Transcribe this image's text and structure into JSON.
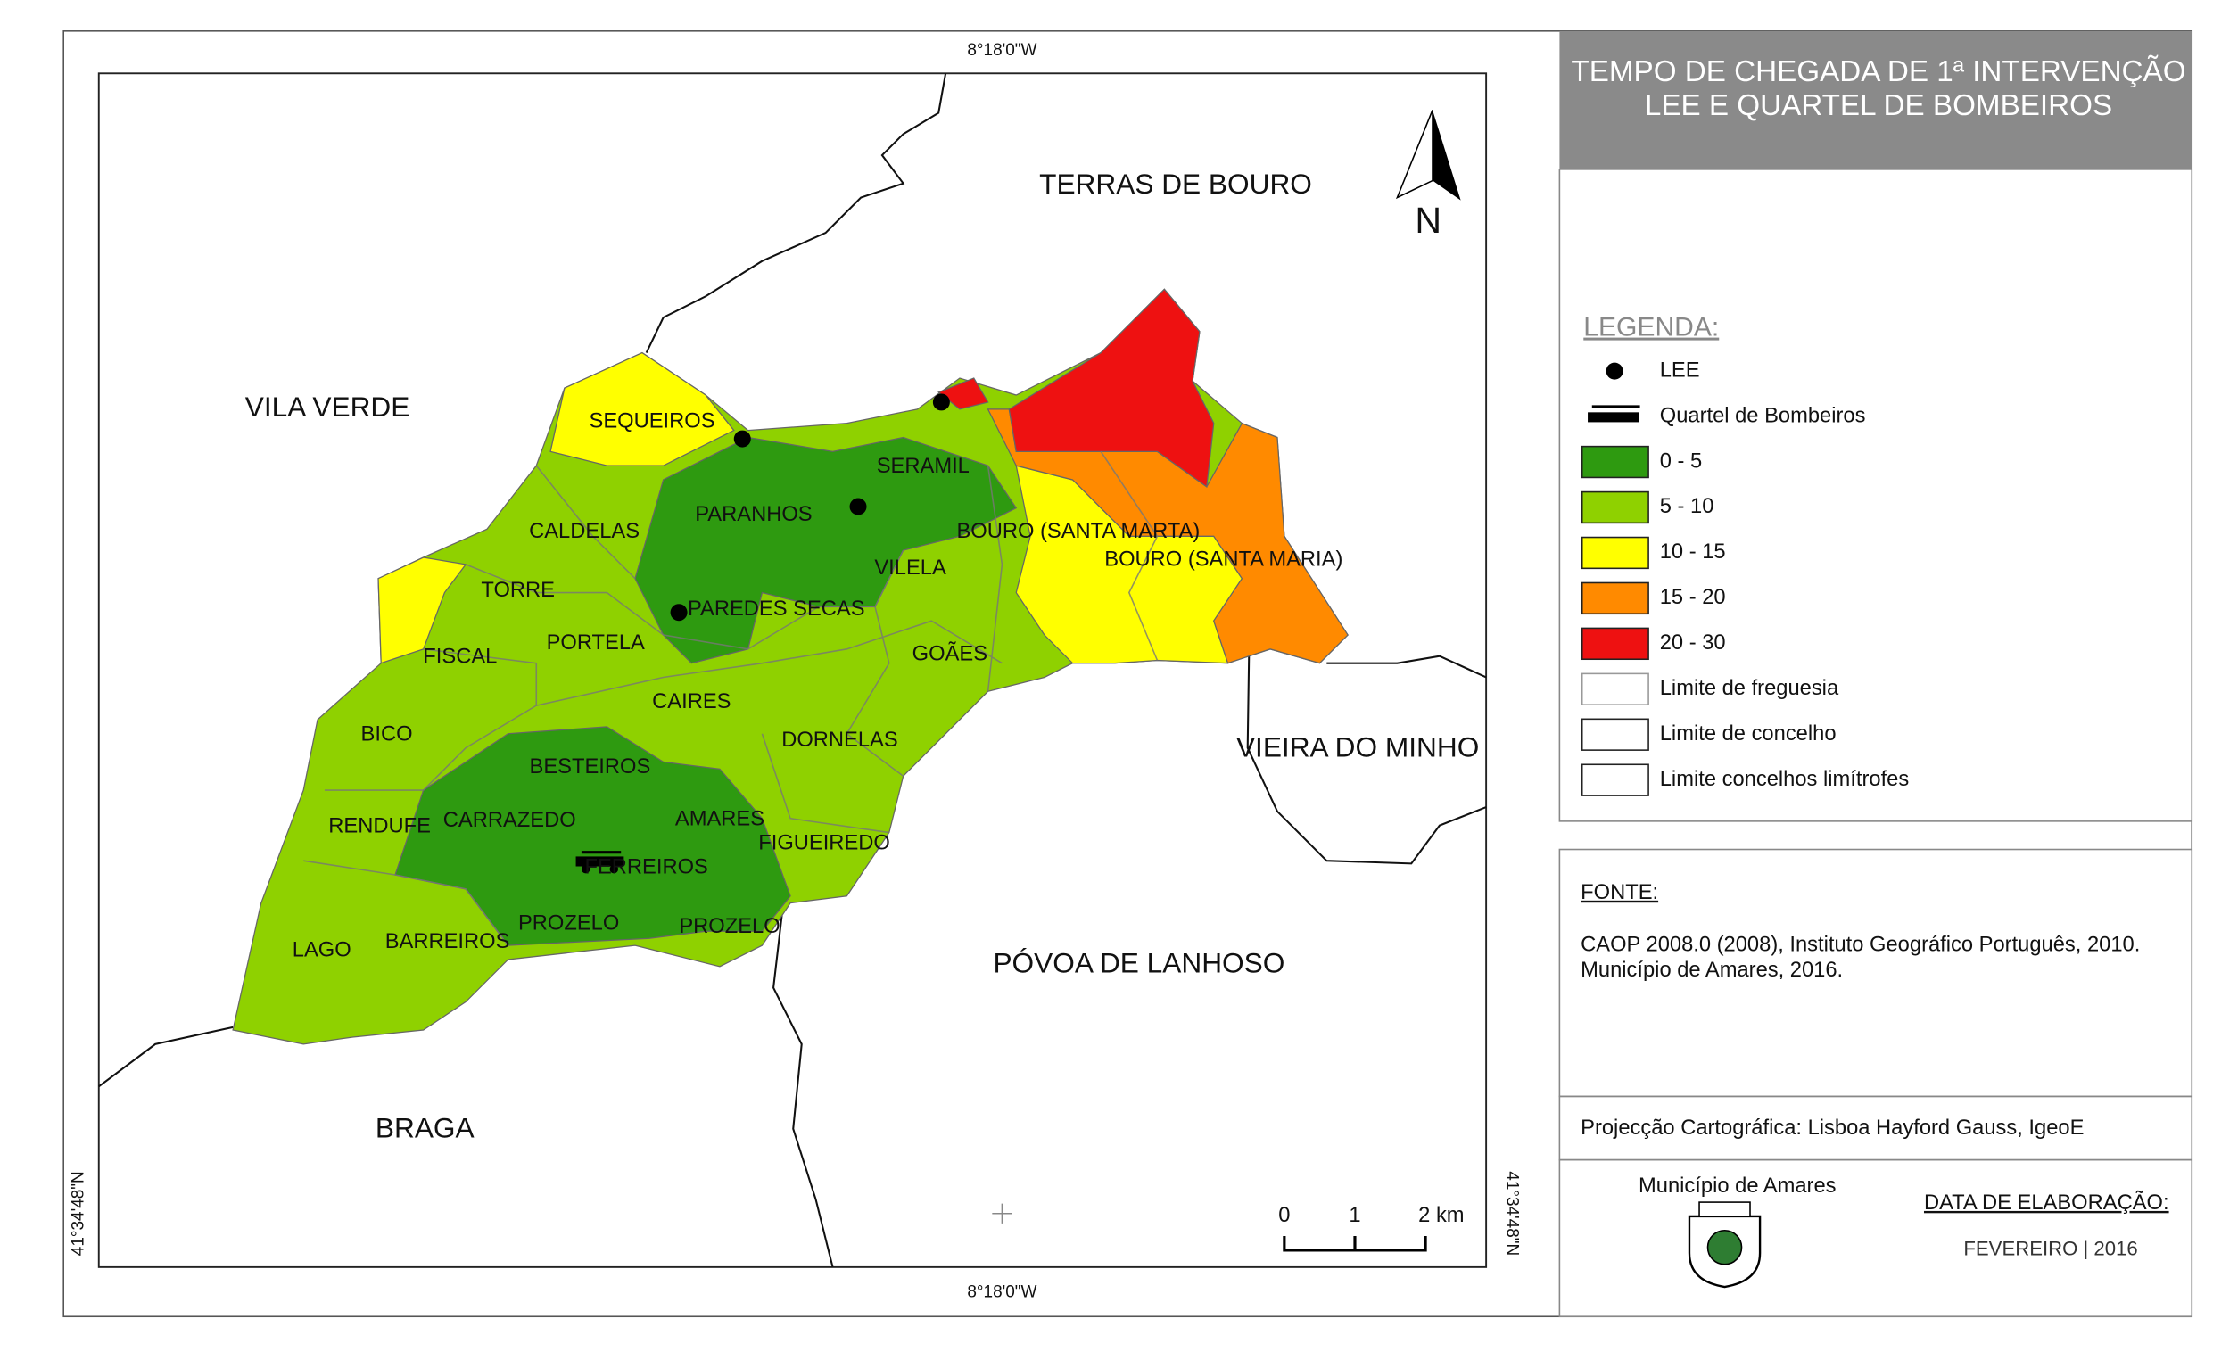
{
  "title": [
    "TEMPO DE CHEGADA DE 1ª INTERVENÇÃO",
    "LEE E QUARTEL DE BOMBEIROS"
  ],
  "north": "N",
  "coordinates": {
    "top": "8°18'0\"W",
    "bottom": "8°18'0\"W",
    "left": "41°34'48\"N",
    "right": "41°34'48\"N"
  },
  "scale": [
    "0",
    "1",
    "2 km"
  ],
  "neighbors": [
    {
      "name": "TERRAS DE BOURO"
    },
    {
      "name": "VILA VERDE"
    },
    {
      "name": "VIEIRA DO MINHO"
    },
    {
      "name": "PÓVOA DE LANHOSO"
    },
    {
      "name": "BRAGA"
    }
  ],
  "parishes": [
    "SEQUEIROS",
    "SERAMIL",
    "PARANHOS",
    "CALDELAS",
    "BOURO (SANTA MARTA)",
    "BOURO (SANTA MARIA)",
    "VILELA",
    "TORRE",
    "PAREDES SECAS",
    "PORTELA",
    "FISCAL",
    "GOÃES",
    "CAIRES",
    "BICO",
    "DORNELAS",
    "BESTEIROS",
    "AMARES",
    "RENDUFE",
    "CARRAZEDO",
    "FIGUEIREDO",
    "FERREIROS",
    "PROZELO",
    "PROZELO",
    "LAGO",
    "BARREIROS"
  ],
  "legend": {
    "heading": "LEGENDA:",
    "items": [
      {
        "label": "LEE"
      },
      {
        "label": "Quartel de Bombeiros"
      },
      {
        "label": "0 - 5",
        "color": "#2e9a10"
      },
      {
        "label": "5 - 10",
        "color": "#8fd100"
      },
      {
        "label": "10 - 15",
        "color": "#ffff00"
      },
      {
        "label": "15 - 20",
        "color": "#ff8a00"
      },
      {
        "label": "20 - 30",
        "color": "#ee1111"
      },
      {
        "label": "Limite de freguesia"
      },
      {
        "label": "Limite de concelho"
      },
      {
        "label": "Limite concelhos limítrofes"
      }
    ]
  },
  "source": {
    "heading": "FONTE:",
    "lines": [
      "CAOP 2008.0 (2008), Instituto Geográfico Português, 2010.",
      "Município de Amares, 2016."
    ]
  },
  "projection": "Projecção Cartográfica: Lisboa Hayford Gauss, IgeoE",
  "municipality": "Município de Amares",
  "date": {
    "heading": "DATA DE ELABORAÇÃO:",
    "value": "FEVEREIRO | 2016"
  }
}
